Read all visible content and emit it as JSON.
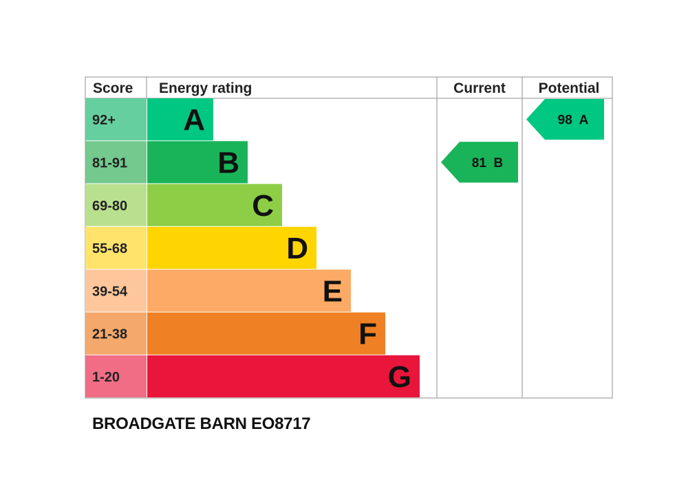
{
  "chart_data": {
    "type": "bar",
    "headers": {
      "score": "Score",
      "rating": "Energy rating",
      "current": "Current",
      "potential": "Potential"
    },
    "bands": [
      {
        "letter": "A",
        "score": "92+",
        "color": "#00c781",
        "score_bg": "#66cfa0"
      },
      {
        "letter": "B",
        "score": "81-91",
        "color": "#19b459",
        "score_bg": "#74c98e"
      },
      {
        "letter": "C",
        "score": "69-80",
        "color": "#8dce46",
        "score_bg": "#b9e08f"
      },
      {
        "letter": "D",
        "score": "55-68",
        "color": "#ffd500",
        "score_bg": "#ffe36b"
      },
      {
        "letter": "E",
        "score": "39-54",
        "color": "#fcaa65",
        "score_bg": "#fdc79b"
      },
      {
        "letter": "F",
        "score": "21-38",
        "color": "#ef8023",
        "score_bg": "#f4a86c"
      },
      {
        "letter": "G",
        "score": "1-20",
        "color": "#e9153b",
        "score_bg": "#f06d85"
      }
    ],
    "current": {
      "value": 81,
      "letter": "B",
      "label": "81  B",
      "color": "#19b459"
    },
    "potential": {
      "value": 98,
      "letter": "A",
      "label": "98  A",
      "color": "#00c781"
    }
  },
  "caption": "BROADGATE BARN EO8717"
}
